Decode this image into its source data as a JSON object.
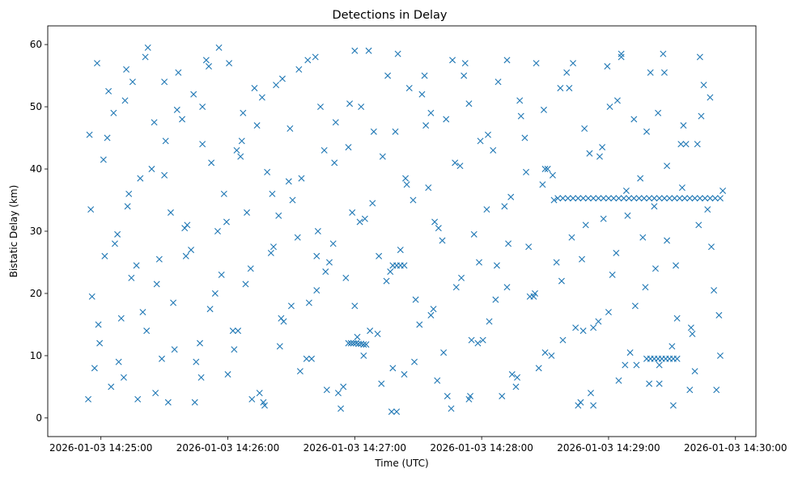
{
  "chart_data": {
    "type": "scatter",
    "title": "Detections in Delay",
    "xlabel": "Time (UTC)",
    "ylabel": "Bistatic Delay (km)",
    "x_unit": "minutes since 2026-01-03 14:24:00",
    "xlim": [
      0.581,
      6.161
    ],
    "ylim": [
      -3.0,
      63.0
    ],
    "x_ticks": [
      {
        "value": 1,
        "label": "2026-01-03 14:25:00"
      },
      {
        "value": 2,
        "label": "2026-01-03 14:26:00"
      },
      {
        "value": 3,
        "label": "2026-01-03 14:27:00"
      },
      {
        "value": 4,
        "label": "2026-01-03 14:28:00"
      },
      {
        "value": 5,
        "label": "2026-01-03 14:29:00"
      },
      {
        "value": 6,
        "label": "2026-01-03 14:30:00"
      }
    ],
    "y_ticks": [
      {
        "value": 0,
        "label": "0"
      },
      {
        "value": 10,
        "label": "10"
      },
      {
        "value": 20,
        "label": "20"
      },
      {
        "value": 30,
        "label": "30"
      },
      {
        "value": 40,
        "label": "40"
      },
      {
        "value": 50,
        "label": "50"
      },
      {
        "value": 60,
        "label": "60"
      }
    ],
    "grid": false,
    "marker": "x",
    "color": "#1f77b4",
    "series": [
      {
        "name": "Detections",
        "x": [
          0.9,
          0.93,
          0.97,
          1.02,
          1.08,
          1.13,
          1.19,
          1.24,
          1.31,
          1.36,
          1.42,
          1.48,
          1.55,
          1.61,
          1.67,
          1.74,
          1.8,
          1.86,
          1.93,
          1.99,
          2.05,
          2.12,
          2.18,
          2.25,
          2.31,
          2.38,
          2.44,
          2.51,
          2.57,
          2.63,
          2.7,
          2.76,
          2.83,
          2.89,
          2.96,
          3.02,
          3.08,
          3.15,
          3.21,
          3.28,
          3.34,
          3.41,
          3.47,
          3.53,
          3.6,
          3.66,
          3.73,
          3.79,
          3.86,
          3.92,
          3.98,
          4.05,
          4.11,
          4.18,
          4.24,
          4.31,
          4.37,
          4.43,
          4.5,
          4.56,
          4.63,
          4.69,
          4.76,
          4.82,
          4.88,
          4.95,
          5.01,
          5.08,
          5.14,
          5.21,
          5.27,
          5.33,
          5.4,
          5.46,
          5.53,
          5.59,
          5.66,
          5.72,
          5.78,
          5.85,
          0.92,
          0.99,
          1.05,
          1.11,
          1.18,
          1.25,
          1.33,
          1.4,
          1.46,
          1.53,
          1.6,
          1.68,
          1.75,
          1.83,
          1.9,
          1.97,
          2.04,
          2.11,
          2.19,
          2.27,
          2.34,
          2.41,
          2.48,
          2.56,
          2.64,
          2.71,
          2.78,
          2.85,
          2.93,
          3.0,
          3.07,
          3.14,
          3.22,
          3.29,
          3.36,
          3.43,
          3.51,
          3.58,
          3.65,
          3.72,
          3.8,
          3.87,
          3.94,
          4.01,
          4.09,
          4.16,
          4.23,
          4.3,
          4.38,
          4.45,
          4.52,
          4.59,
          4.67,
          4.74,
          4.81,
          4.88,
          4.96,
          5.03,
          5.1,
          5.17,
          5.25,
          5.32,
          5.39,
          5.46,
          5.54,
          5.61,
          5.68,
          5.75,
          5.83,
          5.9,
          0.95,
          1.03,
          1.1,
          1.16,
          1.22,
          1.29,
          1.37,
          1.44,
          1.51,
          1.58,
          1.66,
          1.73,
          1.79,
          1.87,
          1.95,
          2.01,
          2.08,
          2.15,
          2.23,
          2.29,
          2.36,
          2.43,
          2.5,
          2.58,
          2.66,
          2.73,
          2.8,
          2.87,
          2.95,
          3.04,
          3.11,
          3.18,
          3.25,
          3.32,
          3.39,
          3.46,
          3.55,
          3.62,
          3.69,
          3.76,
          3.83,
          3.9,
          3.97,
          4.04,
          4.12,
          4.2,
          4.27,
          4.34,
          4.41,
          4.48,
          4.55,
          4.62,
          4.71,
          4.78,
          4.85,
          4.92,
          4.99,
          5.06,
          5.13,
          5.2,
          5.29,
          5.36,
          5.43,
          5.5,
          5.57,
          5.64,
          5.71,
          5.8,
          5.87,
          0.91,
          0.98,
          1.06,
          1.14,
          1.21,
          1.28,
          1.35,
          1.43,
          1.5,
          1.57,
          1.64,
          1.71,
          1.78,
          1.85,
          1.92,
          2.0,
          2.07,
          2.14,
          2.21,
          2.28,
          2.35,
          2.42,
          2.49,
          2.55,
          2.62,
          2.69,
          2.77,
          2.84,
          2.91,
          2.98,
          3.05,
          3.12,
          3.19,
          3.26,
          3.33,
          3.4,
          3.48,
          3.56,
          3.63,
          3.7,
          3.77,
          3.84,
          3.91,
          3.99,
          4.06,
          4.13,
          4.21,
          4.28,
          4.35,
          4.42,
          4.49,
          4.57,
          4.64,
          4.72,
          4.79,
          4.86,
          4.93,
          5.0,
          5.07,
          5.15,
          5.22,
          5.3,
          5.37,
          5.44,
          5.51,
          5.58,
          5.65,
          5.73,
          5.81,
          5.88,
          2.95,
          2.97,
          2.99,
          3.01,
          3.03,
          3.05,
          3.07,
          3.09,
          4.6,
          4.64,
          4.68,
          4.72,
          4.76,
          4.8,
          4.84,
          4.88,
          4.92,
          4.96,
          5.0,
          5.04,
          5.08,
          5.12,
          5.16,
          5.2,
          5.24,
          5.28,
          5.32,
          5.36,
          5.4,
          5.44,
          5.48,
          5.52,
          5.56,
          5.6,
          5.64,
          5.68,
          5.72,
          5.76,
          5.8,
          5.84,
          5.88,
          5.3,
          5.33,
          5.36,
          5.39,
          5.42,
          5.45,
          5.48,
          5.51,
          5.54,
          3.3,
          3.33,
          3.36,
          3.39,
          1.2,
          1.5,
          1.8,
          2.1,
          2.4,
          2.7,
          3.0,
          3.3,
          3.6,
          3.9,
          4.2,
          4.5,
          4.8,
          5.1,
          5.4,
          5.7
        ],
        "y": [
          3.0,
          19.5,
          57.0,
          41.5,
          5.0,
          29.5,
          51.0,
          22.5,
          38.5,
          14.0,
          47.5,
          9.5,
          33.0,
          55.5,
          26.0,
          2.5,
          44.0,
          17.5,
          59.5,
          31.5,
          11.0,
          49.0,
          24.0,
          4.0,
          39.5,
          53.5,
          15.5,
          35.0,
          7.5,
          57.5,
          20.5,
          43.0,
          28.0,
          1.5,
          50.5,
          13.0,
          32.0,
          46.0,
          5.5,
          23.5,
          58.5,
          37.5,
          9.0,
          52.0,
          16.5,
          30.5,
          3.5,
          41.0,
          55.0,
          12.5,
          25.0,
          45.5,
          19.0,
          34.0,
          7.0,
          48.5,
          27.5,
          57.0,
          10.5,
          39.0,
          22.0,
          53.0,
          2.0,
          31.0,
          14.5,
          43.5,
          50.0,
          6.0,
          36.5,
          18.0,
          29.0,
          55.5,
          8.5,
          40.5,
          24.5,
          47.0,
          13.5,
          58.0,
          33.5,
          4.5,
          33.5,
          12.0,
          45.0,
          28.0,
          6.5,
          54.0,
          17.0,
          40.0,
          25.5,
          2.5,
          49.5,
          31.0,
          9.0,
          57.5,
          20.0,
          36.0,
          14.0,
          44.5,
          3.0,
          51.5,
          26.5,
          11.5,
          38.0,
          56.0,
          18.5,
          30.0,
          4.5,
          47.5,
          22.5,
          59.0,
          10.0,
          34.5,
          42.0,
          1.0,
          27.0,
          53.0,
          15.0,
          37.0,
          6.0,
          48.0,
          21.0,
          57.0,
          29.5,
          12.5,
          43.0,
          3.5,
          35.5,
          51.0,
          19.5,
          8.0,
          40.0,
          25.0,
          55.5,
          14.5,
          46.5,
          2.0,
          32.0,
          23.0,
          58.5,
          10.5,
          38.5,
          5.5,
          49.0,
          28.5,
          16.0,
          44.0,
          7.5,
          53.5,
          20.5,
          36.5,
          8.0,
          26.0,
          49.0,
          16.0,
          36.0,
          3.0,
          59.5,
          21.5,
          44.5,
          11.0,
          30.5,
          52.0,
          6.5,
          41.0,
          23.0,
          57.0,
          14.0,
          33.0,
          47.0,
          2.0,
          27.5,
          54.5,
          18.0,
          38.5,
          9.5,
          50.0,
          25.0,
          4.0,
          43.5,
          31.5,
          59.0,
          13.5,
          22.0,
          46.0,
          7.0,
          35.0,
          55.0,
          17.5,
          28.5,
          1.5,
          40.5,
          50.5,
          12.0,
          33.5,
          24.5,
          57.5,
          5.0,
          45.0,
          19.5,
          37.5,
          10.0,
          53.0,
          29.0,
          2.5,
          42.5,
          15.5,
          56.5,
          26.5,
          8.5,
          48.0,
          21.0,
          34.0,
          58.5,
          11.5,
          44.0,
          4.5,
          31.0,
          51.5,
          16.5,
          45.5,
          15.0,
          52.5,
          9.0,
          34.0,
          24.5,
          58.0,
          4.0,
          39.0,
          18.5,
          48.0,
          27.0,
          12.0,
          56.5,
          30.0,
          7.0,
          43.0,
          21.5,
          53.0,
          2.5,
          36.0,
          16.0,
          46.5,
          29.0,
          9.5,
          58.0,
          23.5,
          41.0,
          5.0,
          33.0,
          50.0,
          14.0,
          26.0,
          55.0,
          1.0,
          38.5,
          19.0,
          47.0,
          31.5,
          10.5,
          57.5,
          22.5,
          3.5,
          44.5,
          15.5,
          54.0,
          28.0,
          6.5,
          39.5,
          20.0,
          49.5,
          35.0,
          12.5,
          57.0,
          25.5,
          4.0,
          42.0,
          17.0,
          51.0,
          32.5,
          8.5,
          46.0,
          24.0,
          55.5,
          2.0,
          37.0,
          14.5,
          48.5,
          27.5,
          10.0,
          12.0,
          12.0,
          12.0,
          12.0,
          11.9,
          11.9,
          11.8,
          11.8,
          35.3,
          35.3,
          35.3,
          35.3,
          35.3,
          35.3,
          35.3,
          35.3,
          35.3,
          35.3,
          35.3,
          35.3,
          35.3,
          35.3,
          35.3,
          35.3,
          35.3,
          35.3,
          35.3,
          35.3,
          35.3,
          35.3,
          35.3,
          35.3,
          35.3,
          35.3,
          35.3,
          35.3,
          35.3,
          35.3,
          35.3,
          35.3,
          35.3,
          9.5,
          9.5,
          9.5,
          9.5,
          9.5,
          9.5,
          9.5,
          9.5,
          9.5,
          24.5,
          24.5,
          24.5,
          24.5,
          56.0,
          54.0,
          50.0,
          42.0,
          32.5,
          26.0,
          18.0,
          8.0,
          49.0,
          3.0,
          21.0,
          40.0,
          14.0,
          58.0,
          5.5,
          44.0
        ]
      }
    ]
  }
}
